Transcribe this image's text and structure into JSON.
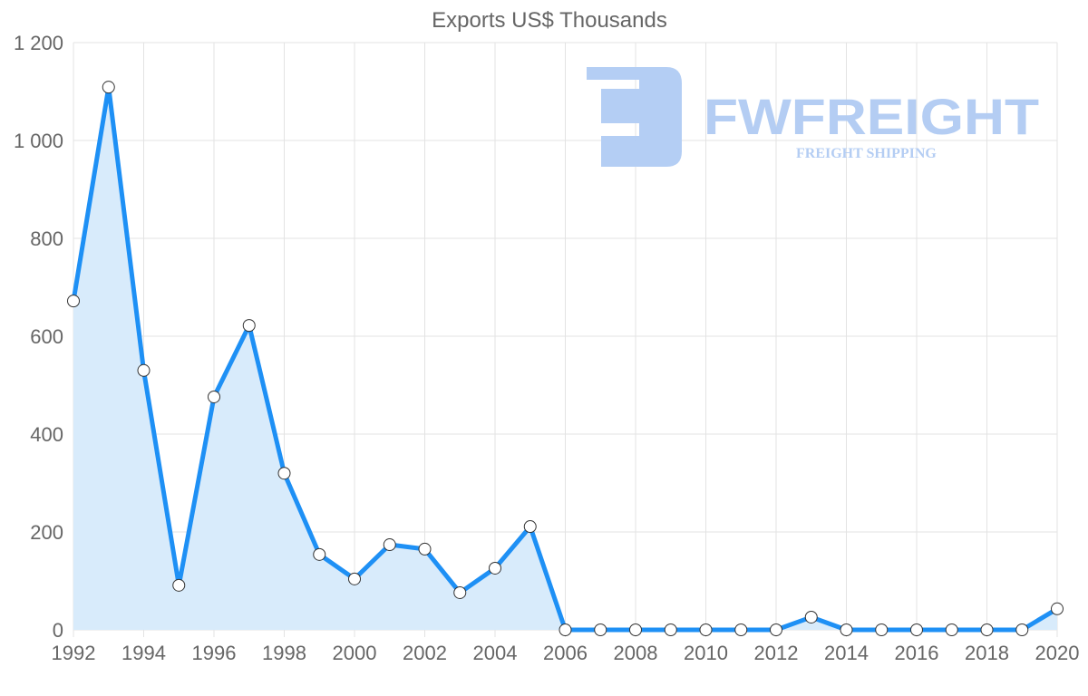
{
  "chart_data": {
    "type": "area",
    "title": "Exports US$ Thousands",
    "xlabel": "",
    "ylabel": "",
    "x": [
      1992,
      1993,
      1994,
      1995,
      1996,
      1997,
      1998,
      1999,
      2000,
      2001,
      2002,
      2003,
      2004,
      2005,
      2006,
      2007,
      2008,
      2009,
      2010,
      2011,
      2012,
      2013,
      2014,
      2015,
      2016,
      2017,
      2018,
      2019,
      2020
    ],
    "values": [
      672,
      1109,
      530,
      91,
      476,
      622,
      320,
      154,
      104,
      174,
      165,
      76,
      126,
      211,
      0,
      0,
      0,
      0,
      0,
      0,
      0,
      26,
      0,
      0,
      0,
      0,
      0,
      0,
      43
    ],
    "xlim": [
      1992,
      2020
    ],
    "ylim": [
      0,
      1200
    ],
    "x_ticks": [
      "1992",
      "1994",
      "1996",
      "1998",
      "2000",
      "2002",
      "2004",
      "2006",
      "2008",
      "2010",
      "2012",
      "2014",
      "2016",
      "2018",
      "2020"
    ],
    "y_ticks": [
      "0",
      "200",
      "400",
      "600",
      "800",
      "1 000",
      "1 200"
    ],
    "grid": true,
    "legend": "none",
    "colors": {
      "line": "#1e90f5",
      "fill": "#d8ebfb",
      "point_fill": "#ffffff",
      "point_stroke": "#333333",
      "grid": "#e3e3e3",
      "text": "#666666"
    }
  },
  "watermark": {
    "brand": "FWFREIGHT",
    "tagline": "FREIGHT SHIPPING"
  }
}
